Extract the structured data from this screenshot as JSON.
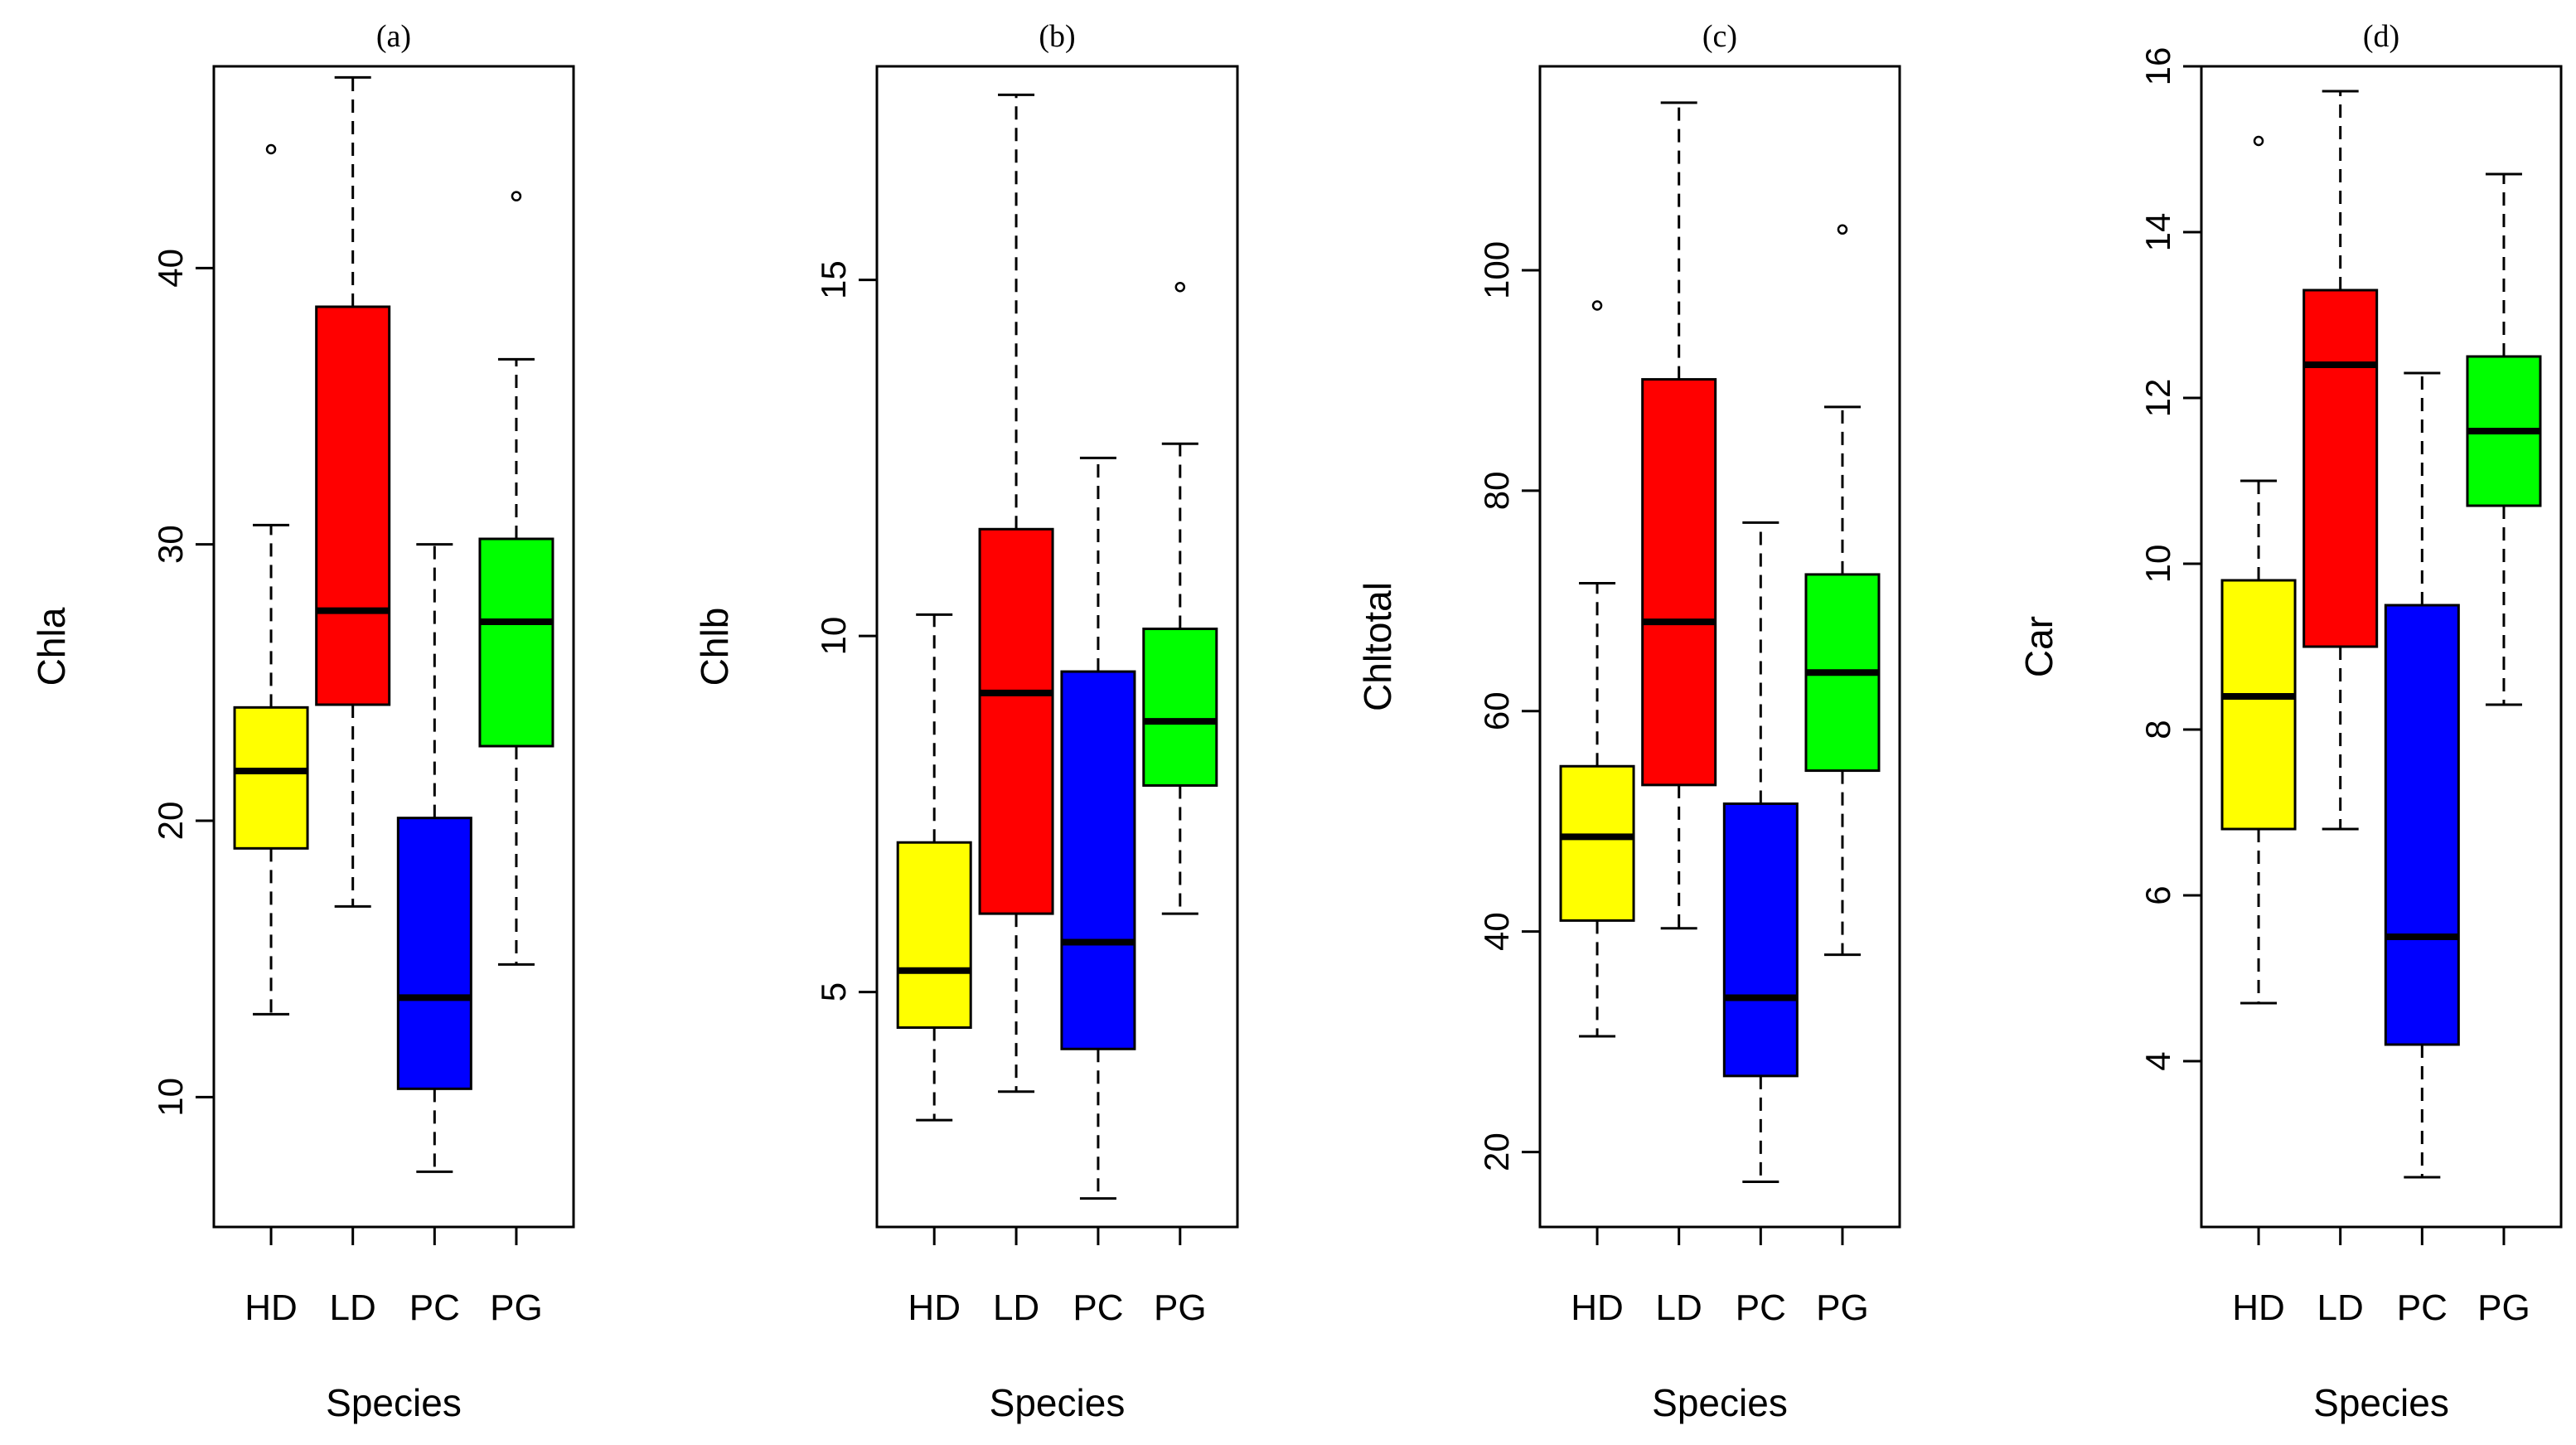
{
  "chart_data": [
    {
      "type": "boxplot",
      "title": "(a)",
      "xlabel": "Species",
      "ylabel": "Chla",
      "ylim": [
        5.3,
        47.3
      ],
      "yticks": [
        10,
        20,
        30,
        40
      ],
      "categories": [
        "HD",
        "LD",
        "PC",
        "PG"
      ],
      "colors": [
        "#ffff00",
        "#ff0000",
        "#0000ff",
        "#00ff00"
      ],
      "boxes": [
        {
          "whisker_low": 13.0,
          "q1": 19.0,
          "median": 21.8,
          "q3": 24.1,
          "whisker_high": 30.7,
          "outliers": [
            44.3
          ]
        },
        {
          "whisker_low": 16.9,
          "q1": 24.2,
          "median": 27.6,
          "q3": 38.6,
          "whisker_high": 46.9,
          "outliers": []
        },
        {
          "whisker_low": 7.3,
          "q1": 10.3,
          "median": 13.6,
          "q3": 20.1,
          "whisker_high": 30.0,
          "outliers": []
        },
        {
          "whisker_low": 14.8,
          "q1": 22.7,
          "median": 27.2,
          "q3": 30.2,
          "whisker_high": 36.7,
          "outliers": [
            42.6
          ]
        }
      ]
    },
    {
      "type": "boxplot",
      "title": "(b)",
      "xlabel": "Species",
      "ylabel": "Chlb",
      "ylim": [
        1.7,
        18.0
      ],
      "yticks": [
        5,
        10,
        15
      ],
      "categories": [
        "HD",
        "LD",
        "PC",
        "PG"
      ],
      "colors": [
        "#ffff00",
        "#ff0000",
        "#0000ff",
        "#00ff00"
      ],
      "boxes": [
        {
          "whisker_low": 3.2,
          "q1": 4.5,
          "median": 5.3,
          "q3": 7.1,
          "whisker_high": 10.3,
          "outliers": []
        },
        {
          "whisker_low": 3.6,
          "q1": 6.1,
          "median": 9.2,
          "q3": 11.5,
          "whisker_high": 17.6,
          "outliers": []
        },
        {
          "whisker_low": 2.1,
          "q1": 4.2,
          "median": 5.7,
          "q3": 9.5,
          "whisker_high": 12.5,
          "outliers": []
        },
        {
          "whisker_low": 6.1,
          "q1": 7.9,
          "median": 8.8,
          "q3": 10.1,
          "whisker_high": 12.7,
          "outliers": [
            14.9
          ]
        }
      ]
    },
    {
      "type": "boxplot",
      "title": "(c)",
      "xlabel": "Species",
      "ylabel": "Chltotal",
      "ylim": [
        13.2,
        118.5
      ],
      "yticks": [
        20,
        40,
        60,
        80,
        100
      ],
      "categories": [
        "HD",
        "LD",
        "PC",
        "PG"
      ],
      "colors": [
        "#ffff00",
        "#ff0000",
        "#0000ff",
        "#00ff00"
      ],
      "boxes": [
        {
          "whisker_low": 30.5,
          "q1": 41.0,
          "median": 48.6,
          "q3": 55.0,
          "whisker_high": 71.6,
          "outliers": [
            96.8
          ]
        },
        {
          "whisker_low": 40.3,
          "q1": 53.3,
          "median": 68.1,
          "q3": 90.1,
          "whisker_high": 115.2,
          "outliers": []
        },
        {
          "whisker_low": 17.3,
          "q1": 26.9,
          "median": 34.0,
          "q3": 51.6,
          "whisker_high": 77.1,
          "outliers": []
        },
        {
          "whisker_low": 37.9,
          "q1": 54.6,
          "median": 63.5,
          "q3": 72.4,
          "whisker_high": 87.6,
          "outliers": [
            103.7
          ]
        }
      ]
    },
    {
      "type": "boxplot",
      "title": "(d)",
      "xlabel": "Species",
      "ylabel": "Car",
      "ylim": [
        2.0,
        16.0
      ],
      "yticks": [
        4,
        6,
        8,
        10,
        12,
        14,
        16
      ],
      "categories": [
        "HD",
        "LD",
        "PC",
        "PG"
      ],
      "colors": [
        "#ffff00",
        "#ff0000",
        "#0000ff",
        "#00ff00"
      ],
      "boxes": [
        {
          "whisker_low": 4.7,
          "q1": 6.8,
          "median": 8.4,
          "q3": 9.8,
          "whisker_high": 11.0,
          "outliers": [
            15.1
          ]
        },
        {
          "whisker_low": 6.8,
          "q1": 9.0,
          "median": 12.4,
          "q3": 13.3,
          "whisker_high": 15.7,
          "outliers": []
        },
        {
          "whisker_low": 2.6,
          "q1": 4.2,
          "median": 5.5,
          "q3": 9.5,
          "whisker_high": 12.3,
          "outliers": []
        },
        {
          "whisker_low": 8.3,
          "q1": 10.7,
          "median": 11.6,
          "q3": 12.5,
          "whisker_high": 14.7,
          "outliers": []
        }
      ]
    }
  ]
}
